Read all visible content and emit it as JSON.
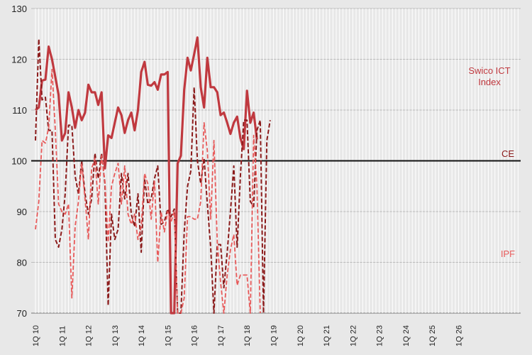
{
  "chart_data": {
    "type": "line",
    "ylim": [
      70,
      130
    ],
    "yticks": [
      70,
      80,
      90,
      100,
      110,
      120,
      130
    ],
    "reference_line": {
      "value": 100
    },
    "grid": "vertical and horizontal",
    "xticks": [
      "1Q 10",
      "1Q 11",
      "1Q 12",
      "1Q 13",
      "1Q 14",
      "1Q 15",
      "1Q 16",
      "1Q 17",
      "1Q 18",
      "1Q 19",
      "1Q 20",
      "1Q 21",
      "1Q 22",
      "1Q 23",
      "1Q 24",
      "1Q 25",
      "1Q 26"
    ],
    "x_start_index": 0,
    "series": [
      {
        "name": "Swico ICT Index",
        "label": [
          "Swico ICT",
          "Index"
        ],
        "color": "#c0393f",
        "style": "solid",
        "values": [
          110,
          110.5,
          115.8,
          116,
          122.5,
          120,
          116.5,
          113,
          104,
          105.5,
          113.5,
          110.5,
          106.5,
          110,
          108,
          109.5,
          115,
          113.5,
          113.5,
          111,
          113.5,
          98.5,
          105,
          104.5,
          107.5,
          110.5,
          109,
          105.5,
          108,
          109.5,
          106,
          110,
          117.5,
          119.5,
          115,
          114.8,
          115.5,
          114,
          117,
          117,
          117.5,
          70,
          70,
          99.5,
          101,
          114,
          120.3,
          117.8,
          121,
          124.3,
          114.5,
          110.5,
          120.3,
          114.5,
          114.5,
          113.5,
          109,
          109.5,
          107.5,
          105.3,
          107.5,
          108.7,
          104.5,
          102.3,
          113.8,
          107.5,
          109.5,
          104.2
        ]
      },
      {
        "name": "CE",
        "label": [
          "CE"
        ],
        "color": "#8b1a1a",
        "style": "dashed",
        "values": [
          104,
          124,
          112,
          112.5,
          106,
          106,
          84.5,
          83,
          86.5,
          93.5,
          107,
          107,
          97,
          93.5,
          100,
          93.5,
          89.5,
          92.5,
          101.5,
          96.5,
          101.5,
          95.5,
          71.5,
          89.5,
          84.5,
          86.5,
          97.5,
          92.5,
          97.5,
          89.5,
          87,
          93.5,
          82,
          96.5,
          91.5,
          92.5,
          96.5,
          99,
          87.5,
          88,
          90.5,
          89,
          90.5,
          70,
          70,
          86,
          95,
          98,
          114.5,
          100,
          95.5,
          100.5,
          91.5,
          83,
          70,
          83.5,
          83.5,
          75,
          82,
          90,
          99,
          83,
          97,
          108,
          108,
          92,
          91,
          106,
          108,
          70,
          104,
          108
        ]
      },
      {
        "name": "IPF",
        "label": [
          "IPF"
        ],
        "color": "#e85a5a",
        "style": "dashed",
        "values": [
          86.5,
          92,
          104,
          103.5,
          106.5,
          118,
          106,
          91.5,
          90,
          89.5,
          91.5,
          73,
          87,
          92,
          99.5,
          92.5,
          84.5,
          98.5,
          100.5,
          91.5,
          101,
          96,
          84,
          95,
          97.5,
          99.5,
          91.5,
          99,
          89.5,
          87.5,
          89.5,
          84.5,
          87,
          97.5,
          95.5,
          88.5,
          96,
          80,
          90,
          86,
          90,
          88,
          90,
          70,
          70,
          73,
          89,
          89,
          88.5,
          88.5,
          92,
          107.5,
          102,
          88.5,
          104,
          84,
          76,
          70,
          77.5,
          82.5,
          85.5,
          75.5,
          77.5,
          77.5,
          77.5,
          70,
          105,
          95,
          70
        ]
      }
    ]
  }
}
